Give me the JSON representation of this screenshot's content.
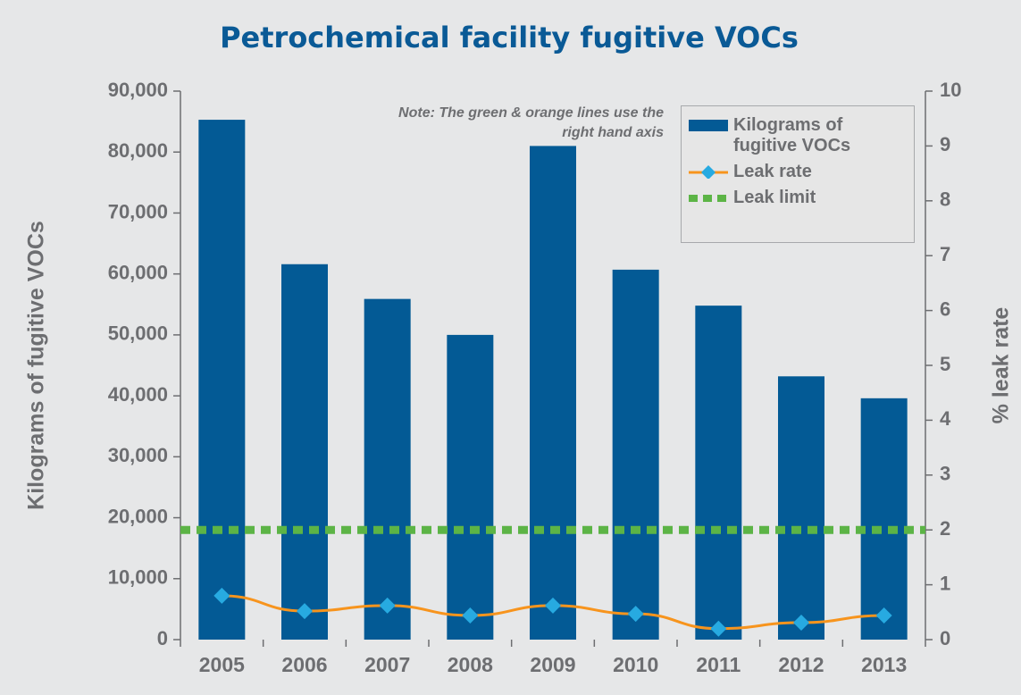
{
  "chart_data": {
    "type": "bar",
    "title": "Petrochemical facility fugitive VOCs",
    "annotation": "Note: The green & orange lines use the right hand axis",
    "y_label": "Kilograms of fugitive VOCs",
    "y2_label": "% leak rate",
    "categories": [
      "2005",
      "2006",
      "2007",
      "2008",
      "2009",
      "2010",
      "2011",
      "2012",
      "2013"
    ],
    "series": [
      {
        "name": "Kilograms of fugitive VOCs",
        "type": "bar",
        "color": "#035a95",
        "values": [
          85300,
          61600,
          55900,
          50000,
          81000,
          60700,
          54800,
          43200,
          39600
        ]
      },
      {
        "name": "Leak rate",
        "type": "line",
        "axis": "y2",
        "color": "#f7941d",
        "marker_color": "#27aae1",
        "values": [
          0.8,
          0.52,
          0.62,
          0.44,
          0.62,
          0.47,
          0.2,
          0.31,
          0.44
        ]
      },
      {
        "name": "Leak limit",
        "type": "dashed",
        "axis": "y2",
        "color": "#5cb446",
        "values": [
          2,
          2,
          2,
          2,
          2,
          2,
          2,
          2,
          2
        ]
      }
    ],
    "ylim": [
      0,
      90000
    ],
    "yticks": [
      {
        "value": 0,
        "label": "0"
      },
      {
        "value": 10000,
        "label": "10,000"
      },
      {
        "value": 20000,
        "label": "20,000"
      },
      {
        "value": 30000,
        "label": "30,000"
      },
      {
        "value": 40000,
        "label": "40,000"
      },
      {
        "value": 50000,
        "label": "50,000"
      },
      {
        "value": 60000,
        "label": "60,000"
      },
      {
        "value": 70000,
        "label": "70,000"
      },
      {
        "value": 80000,
        "label": "80,000"
      },
      {
        "value": 90000,
        "label": "90,000"
      }
    ],
    "y2lim": [
      0,
      10
    ],
    "y2ticks": [
      0,
      1,
      2,
      3,
      4,
      5,
      6,
      7,
      8,
      9,
      10
    ],
    "legend": "upper right"
  }
}
